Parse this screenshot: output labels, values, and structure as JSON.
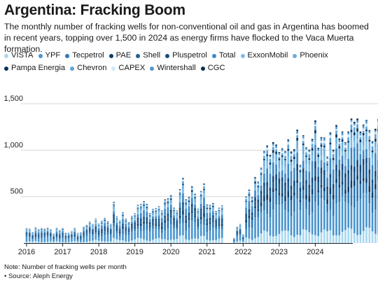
{
  "header": {
    "title": "Argentina: Fracking Boom",
    "subtitle": "The monthly number of fracking wells for non-conventional oil and gas in Argentina has boomed in recent years, topping over 1,500 in 2024 as energy firms have flocked to the Vaca Muerta formation."
  },
  "footer": {
    "note": "Note: Number of fracking wells per month",
    "source": "• Source: Aleph Energy"
  },
  "chart_data": {
    "type": "bar",
    "stacked": true,
    "title": "Argentina: Fracking Boom",
    "xlabel": "",
    "ylabel": "",
    "ylim": [
      0,
      1750
    ],
    "y_ticks": [
      500,
      1000,
      1500
    ],
    "y_tick_labels": [
      "500",
      "1,000",
      "1,500"
    ],
    "x_ticks": [
      "2016",
      "2017",
      "2018",
      "2019",
      "2020",
      "2021",
      "2022",
      "2023",
      "2024"
    ],
    "grid": "horizontal",
    "legend_position": "top",
    "series_names": [
      "VISTA",
      "YPF",
      "Tecpetrol",
      "PAE",
      "Shell",
      "Pluspetrol",
      "Total",
      "ExxonMobil",
      "Phoenix",
      "Pampa Energia",
      "Chevron",
      "CAPEX",
      "Wintershall",
      "CGC"
    ],
    "series_colors": [
      "#a8d8f0",
      "#4a95cf",
      "#2e78b5",
      "#0d3d6b",
      "#1f5d91",
      "#154a7e",
      "#3f88c5",
      "#7dbde6",
      "#6aaedd",
      "#0a3258",
      "#5ca3d8",
      "#cfe8f7",
      "#5199d0",
      "#0c2d4f"
    ],
    "first_month": "2016-01",
    "monthly_totals": [
      160,
      155,
      120,
      170,
      150,
      160,
      155,
      165,
      150,
      105,
      165,
      140,
      160,
      110,
      110,
      130,
      165,
      110,
      115,
      175,
      195,
      230,
      205,
      265,
      210,
      240,
      270,
      235,
      205,
      445,
      290,
      245,
      330,
      260,
      225,
      290,
      320,
      410,
      420,
      450,
      420,
      320,
      365,
      375,
      395,
      350,
      470,
      480,
      515,
      380,
      350,
      580,
      700,
      470,
      495,
      610,
      530,
      370,
      560,
      640,
      415,
      410,
      430,
      345,
      380,
      405,
      0,
      0,
      0,
      55,
      175,
      205,
      95,
      500,
      575,
      495,
      710,
      660,
      810,
      990,
      1050,
      950,
      1085,
      1060,
      980,
      1020,
      990,
      1115,
      985,
      1010,
      1220,
      840,
      1160,
      1030,
      1005,
      1120,
      1320,
      1025,
      1140,
      1135,
      930,
      1190,
      1005,
      1270,
      1125,
      1200,
      1085,
      1200,
      1340,
      1305,
      1340,
      1200,
      1275,
      1325,
      1215,
      1095,
      1230,
      1335,
      1440,
      1370,
      1340,
      1650,
      1690,
      1505,
      1690,
      1615,
      1440,
      1400
    ]
  }
}
